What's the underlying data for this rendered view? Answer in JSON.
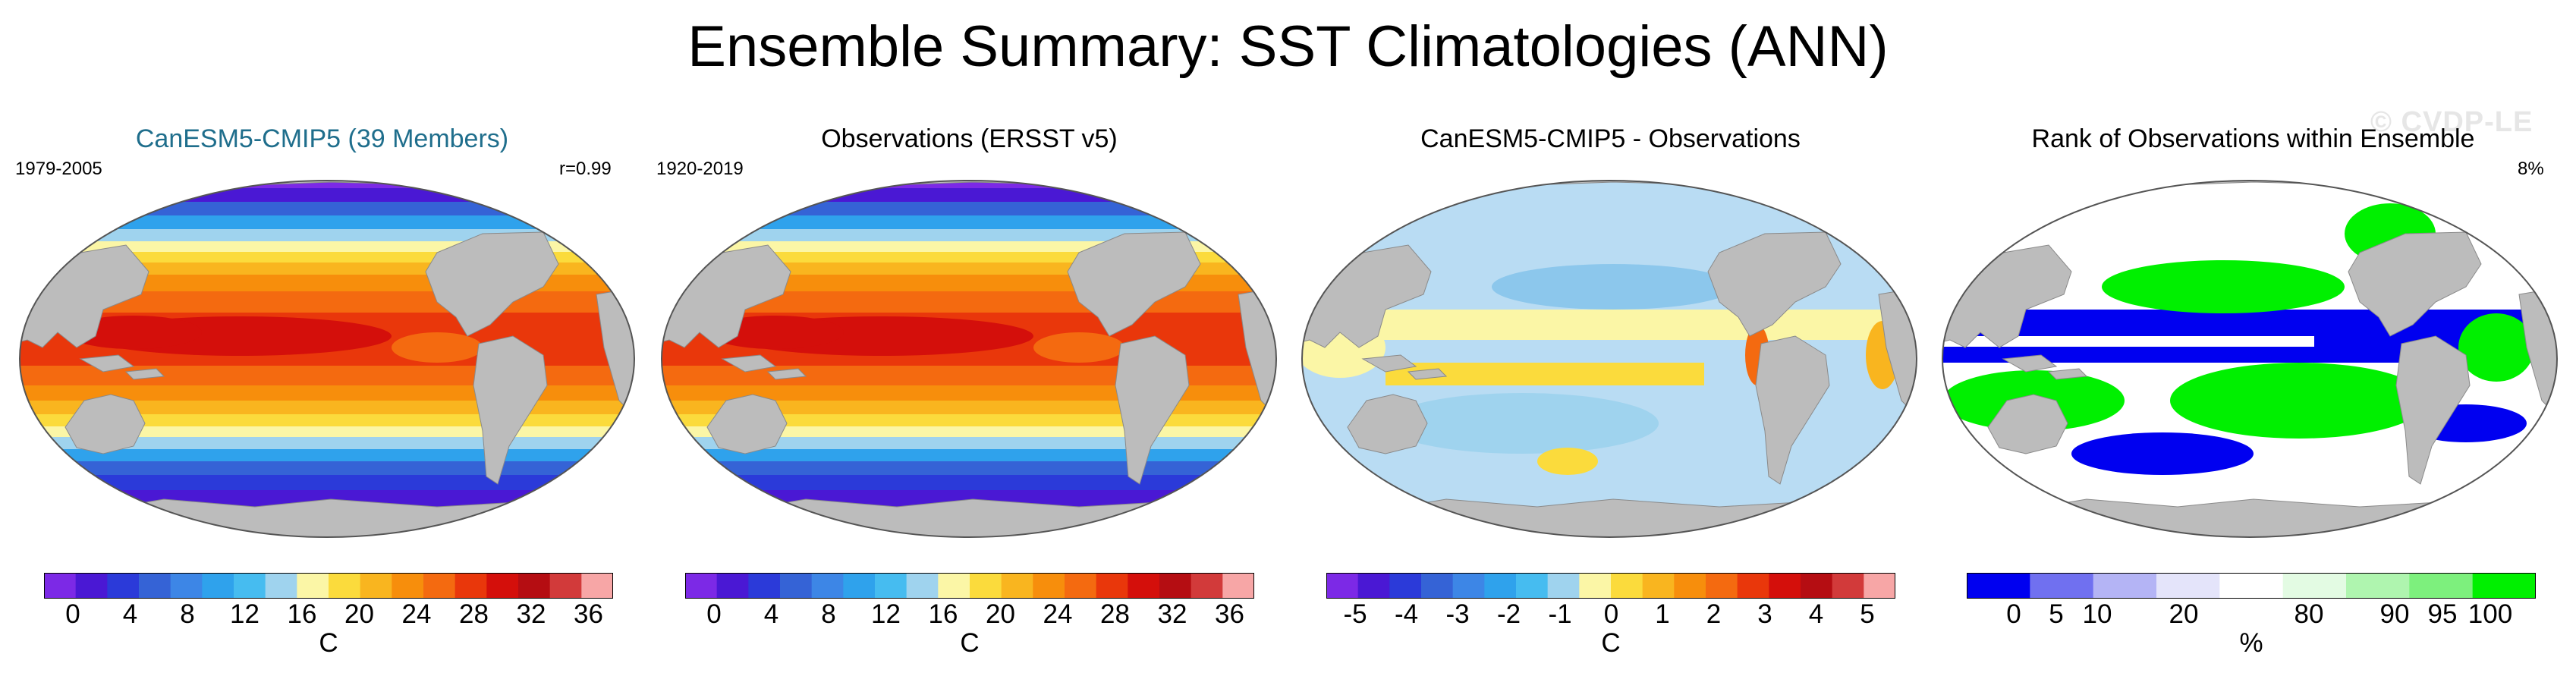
{
  "title": "Ensemble Summary: SST Climatologies (ANN)",
  "watermark": "© CVDP-LE",
  "colors": {
    "land": "#bcbcbc",
    "sst_scale": [
      "#7c29e6",
      "#4a18d4",
      "#2b3ad9",
      "#3563d6",
      "#3d86e6",
      "#2fa2ec",
      "#46bcf0",
      "#9fd3ee",
      "#fbf6a6",
      "#fbdb3c",
      "#f9b51f",
      "#f78e0c",
      "#f46a10",
      "#e9370b",
      "#d40f0b",
      "#b50d12",
      "#d23a3a",
      "#f7a6a6"
    ],
    "rank_scale": [
      "#0000f0",
      "#7070f0",
      "#b4b4f5",
      "#e4e4fa",
      "#ffffff",
      "#e3fbe3",
      "#aff5af",
      "#7df07d",
      "#00f000"
    ]
  },
  "panels": [
    {
      "title": "CanESM5-CMIP5 (39 Members)",
      "period": "1979-2005",
      "stat": "r=0.99",
      "type": "sst",
      "colorbar": {
        "ticks": [
          "0",
          "4",
          "8",
          "12",
          "16",
          "20",
          "24",
          "28",
          "32",
          "36"
        ],
        "unit": "C"
      }
    },
    {
      "title": "Observations (ERSST v5)",
      "period": "1920-2019",
      "stat": "",
      "type": "sst",
      "colorbar": {
        "ticks": [
          "0",
          "4",
          "8",
          "12",
          "16",
          "20",
          "24",
          "28",
          "32",
          "36"
        ],
        "unit": "C"
      }
    },
    {
      "title": "CanESM5-CMIP5 - Observations",
      "period": "",
      "stat": "",
      "type": "diff",
      "colorbar": {
        "ticks": [
          "-5",
          "-4",
          "-3",
          "-2",
          "-1",
          "0",
          "1",
          "2",
          "3",
          "4",
          "5"
        ],
        "unit": "C"
      }
    },
    {
      "title": "Rank of Observations within Ensemble",
      "period": "",
      "stat": "8%",
      "type": "rank",
      "colorbar": {
        "ticks": [
          "0",
          "5",
          "10",
          "20",
          "80",
          "90",
          "95",
          "100"
        ],
        "unit": "%"
      }
    }
  ]
}
